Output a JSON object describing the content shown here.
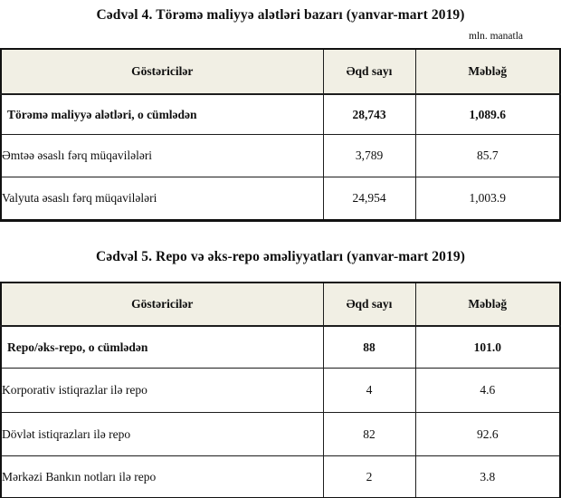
{
  "table4": {
    "title": "Cədvəl 4. Törəmə maliyyə alətləri bazarı (yanvar-mart 2019)",
    "unit_label": "mln. manatla",
    "headers": [
      "Göstəricilər",
      "Əqd sayı",
      "Məbləğ"
    ],
    "rows": [
      {
        "label": "Törəmə maliyyə alətləri, o cümlədən",
        "deal_count": "28,743",
        "amount": "1,089.6"
      },
      {
        "label": "Əmtəə əsaslı fərq müqavilələri",
        "deal_count": "3,789",
        "amount": "85.7"
      },
      {
        "label": "Valyuta əsaslı fərq müqavilələri",
        "deal_count": "24,954",
        "amount": "1,003.9"
      }
    ]
  },
  "table5": {
    "title": "Cədvəl 5. Repo və əks-repo əməliyyatları (yanvar-mart 2019)",
    "headers": [
      "Göstəricilər",
      "Əqd sayı",
      "Məbləğ"
    ],
    "rows": [
      {
        "label": "Repo/əks-repo, o cümlədən",
        "deal_count": "88",
        "amount": "101.0"
      },
      {
        "label": "Korporativ istiqrazlar ilə repo",
        "deal_count": "4",
        "amount": "4.6"
      },
      {
        "label": "Dövlət istiqrazları ilə repo",
        "deal_count": "82",
        "amount": "92.6"
      },
      {
        "label": "Mərkəzi Bankın notları ilə repo",
        "deal_count": "2",
        "amount": "3.8"
      }
    ]
  },
  "colors": {
    "header_background": "#f1efe4",
    "border": "#1d1d1d",
    "text": "#0f0f0f",
    "page_background": "#ffffff"
  }
}
